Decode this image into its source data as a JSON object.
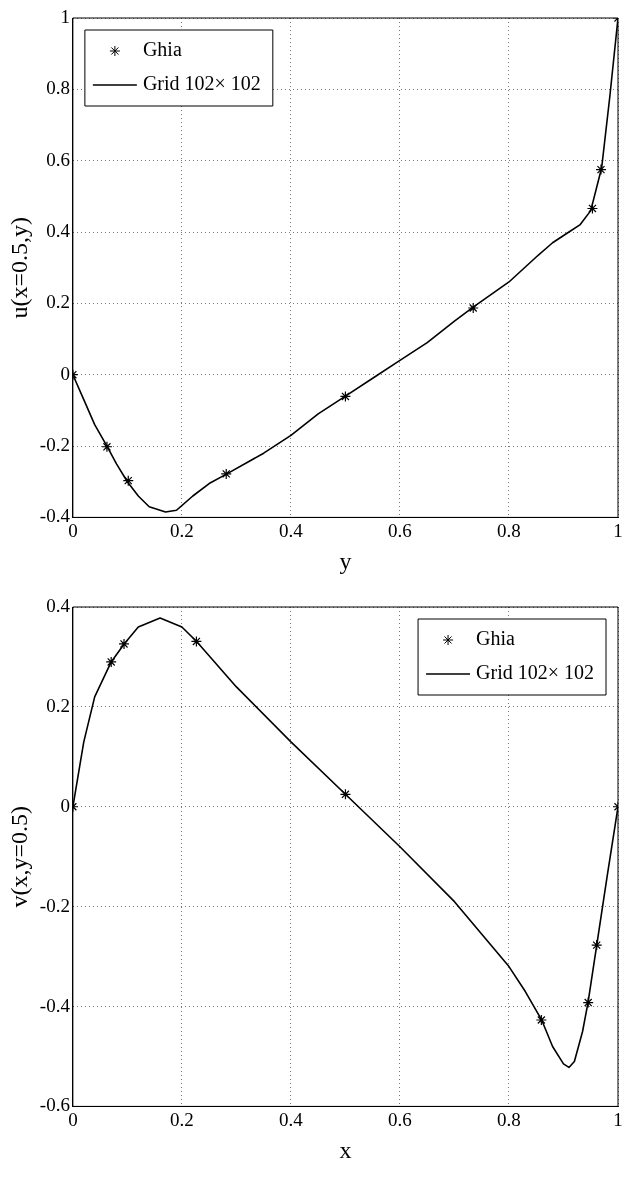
{
  "chart_data": [
    {
      "type": "line",
      "xlabel": "y",
      "ylabel": "u(x=0.5,y)",
      "xlim": [
        0,
        1
      ],
      "ylim": [
        -0.4,
        1
      ],
      "xticks": [
        0,
        0.2,
        0.4,
        0.6,
        0.8,
        1
      ],
      "yticks": [
        -0.4,
        -0.2,
        0,
        0.2,
        0.4,
        0.6,
        0.8,
        1
      ],
      "grid": true,
      "legend": "top left",
      "series": [
        {
          "name": "Ghia",
          "type": "scatter",
          "marker": "cross",
          "color": "#000000",
          "x": [
            0,
            0.0625,
            0.1016,
            0.2813,
            0.5,
            0.7344,
            0.9531,
            0.9688,
            1
          ],
          "values": [
            0,
            -0.202,
            -0.297,
            -0.278,
            -0.061,
            0.187,
            0.466,
            0.575,
            1
          ]
        },
        {
          "name": "Grid 102× 102",
          "type": "line",
          "marker": "none",
          "line_style": "solid",
          "color": "#000000",
          "x": [
            0,
            0.02,
            0.04,
            0.0625,
            0.08,
            0.1,
            0.12,
            0.14,
            0.17,
            0.19,
            0.22,
            0.25,
            0.28,
            0.35,
            0.4,
            0.45,
            0.5,
            0.55,
            0.6,
            0.65,
            0.7,
            0.735,
            0.8,
            0.85,
            0.88,
            0.91,
            0.93,
            0.95,
            0.97,
            0.985,
            1
          ],
          "values": [
            0,
            -0.07,
            -0.14,
            -0.2,
            -0.25,
            -0.3,
            -0.34,
            -0.37,
            -0.385,
            -0.38,
            -0.34,
            -0.305,
            -0.28,
            -0.22,
            -0.17,
            -0.11,
            -0.06,
            -0.01,
            0.04,
            0.09,
            0.15,
            0.19,
            0.26,
            0.33,
            0.37,
            0.4,
            0.42,
            0.46,
            0.58,
            0.78,
            1
          ]
        }
      ]
    },
    {
      "type": "line",
      "xlabel": "x",
      "ylabel": "v(x,y=0.5)",
      "xlim": [
        0,
        1
      ],
      "ylim": [
        -0.6,
        0.4
      ],
      "xticks": [
        0,
        0.2,
        0.4,
        0.6,
        0.8,
        1
      ],
      "yticks": [
        -0.6,
        -0.4,
        -0.2,
        0,
        0.2,
        0.4
      ],
      "grid": true,
      "legend": "top right",
      "series": [
        {
          "name": "Ghia",
          "type": "scatter",
          "marker": "cross",
          "color": "#000000",
          "x": [
            0,
            0.0703,
            0.0938,
            0.2266,
            0.5,
            0.8594,
            0.9453,
            0.9609,
            1
          ],
          "values": [
            0,
            0.29,
            0.326,
            0.331,
            0.025,
            -0.427,
            -0.392,
            -0.277,
            0
          ]
        },
        {
          "name": "Grid 102× 102",
          "type": "line",
          "marker": "none",
          "line_style": "solid",
          "color": "#000000",
          "x": [
            0,
            0.02,
            0.04,
            0.0703,
            0.094,
            0.12,
            0.16,
            0.2,
            0.227,
            0.3,
            0.4,
            0.5,
            0.6,
            0.7,
            0.8,
            0.83,
            0.86,
            0.88,
            0.9,
            0.91,
            0.92,
            0.935,
            0.945,
            0.961,
            0.98,
            1
          ],
          "values": [
            0,
            0.13,
            0.22,
            0.29,
            0.326,
            0.36,
            0.378,
            0.36,
            0.331,
            0.24,
            0.13,
            0.025,
            -0.08,
            -0.19,
            -0.32,
            -0.37,
            -0.427,
            -0.48,
            -0.515,
            -0.522,
            -0.51,
            -0.45,
            -0.392,
            -0.277,
            -0.14,
            0
          ]
        }
      ]
    }
  ]
}
